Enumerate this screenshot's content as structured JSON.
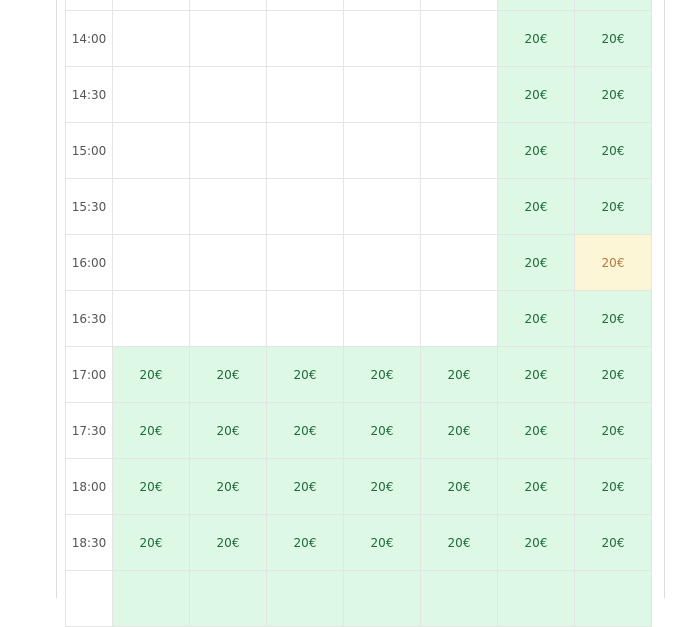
{
  "schedule": {
    "accent_available": "#ddf9e6",
    "accent_pending": "#fdf6d6",
    "rows": [
      {
        "time": "",
        "slots": [
          "",
          "",
          "",
          "",
          "",
          "",
          ""
        ],
        "status": [
          "empty",
          "empty",
          "empty",
          "empty",
          "empty",
          "avail",
          "avail"
        ]
      },
      {
        "time": "14:00",
        "slots": [
          "",
          "",
          "",
          "",
          "",
          "20€",
          "20€"
        ],
        "status": [
          "empty",
          "empty",
          "empty",
          "empty",
          "empty",
          "avail",
          "avail"
        ]
      },
      {
        "time": "14:30",
        "slots": [
          "",
          "",
          "",
          "",
          "",
          "20€",
          "20€"
        ],
        "status": [
          "empty",
          "empty",
          "empty",
          "empty",
          "empty",
          "avail",
          "avail"
        ]
      },
      {
        "time": "15:00",
        "slots": [
          "",
          "",
          "",
          "",
          "",
          "20€",
          "20€"
        ],
        "status": [
          "empty",
          "empty",
          "empty",
          "empty",
          "empty",
          "avail",
          "avail"
        ]
      },
      {
        "time": "15:30",
        "slots": [
          "",
          "",
          "",
          "",
          "",
          "20€",
          "20€"
        ],
        "status": [
          "empty",
          "empty",
          "empty",
          "empty",
          "empty",
          "avail",
          "avail"
        ]
      },
      {
        "time": "16:00",
        "slots": [
          "",
          "",
          "",
          "",
          "",
          "20€",
          "20€"
        ],
        "status": [
          "empty",
          "empty",
          "empty",
          "empty",
          "empty",
          "avail",
          "pending"
        ]
      },
      {
        "time": "16:30",
        "slots": [
          "",
          "",
          "",
          "",
          "",
          "20€",
          "20€"
        ],
        "status": [
          "empty",
          "empty",
          "empty",
          "empty",
          "empty",
          "avail",
          "avail"
        ]
      },
      {
        "time": "17:00",
        "slots": [
          "20€",
          "20€",
          "20€",
          "20€",
          "20€",
          "20€",
          "20€"
        ],
        "status": [
          "avail",
          "avail",
          "avail",
          "avail",
          "avail",
          "avail",
          "avail"
        ]
      },
      {
        "time": "17:30",
        "slots": [
          "20€",
          "20€",
          "20€",
          "20€",
          "20€",
          "20€",
          "20€"
        ],
        "status": [
          "avail",
          "avail",
          "avail",
          "avail",
          "avail",
          "avail",
          "avail"
        ]
      },
      {
        "time": "18:00",
        "slots": [
          "20€",
          "20€",
          "20€",
          "20€",
          "20€",
          "20€",
          "20€"
        ],
        "status": [
          "avail",
          "avail",
          "avail",
          "avail",
          "avail",
          "avail",
          "avail"
        ]
      },
      {
        "time": "18:30",
        "slots": [
          "20€",
          "20€",
          "20€",
          "20€",
          "20€",
          "20€",
          "20€"
        ],
        "status": [
          "avail",
          "avail",
          "avail",
          "avail",
          "avail",
          "avail",
          "avail"
        ]
      },
      {
        "time": "",
        "slots": [
          "",
          "",
          "",
          "",
          "",
          "",
          ""
        ],
        "status": [
          "avail",
          "avail",
          "avail",
          "avail",
          "avail",
          "avail",
          "avail"
        ]
      }
    ]
  }
}
